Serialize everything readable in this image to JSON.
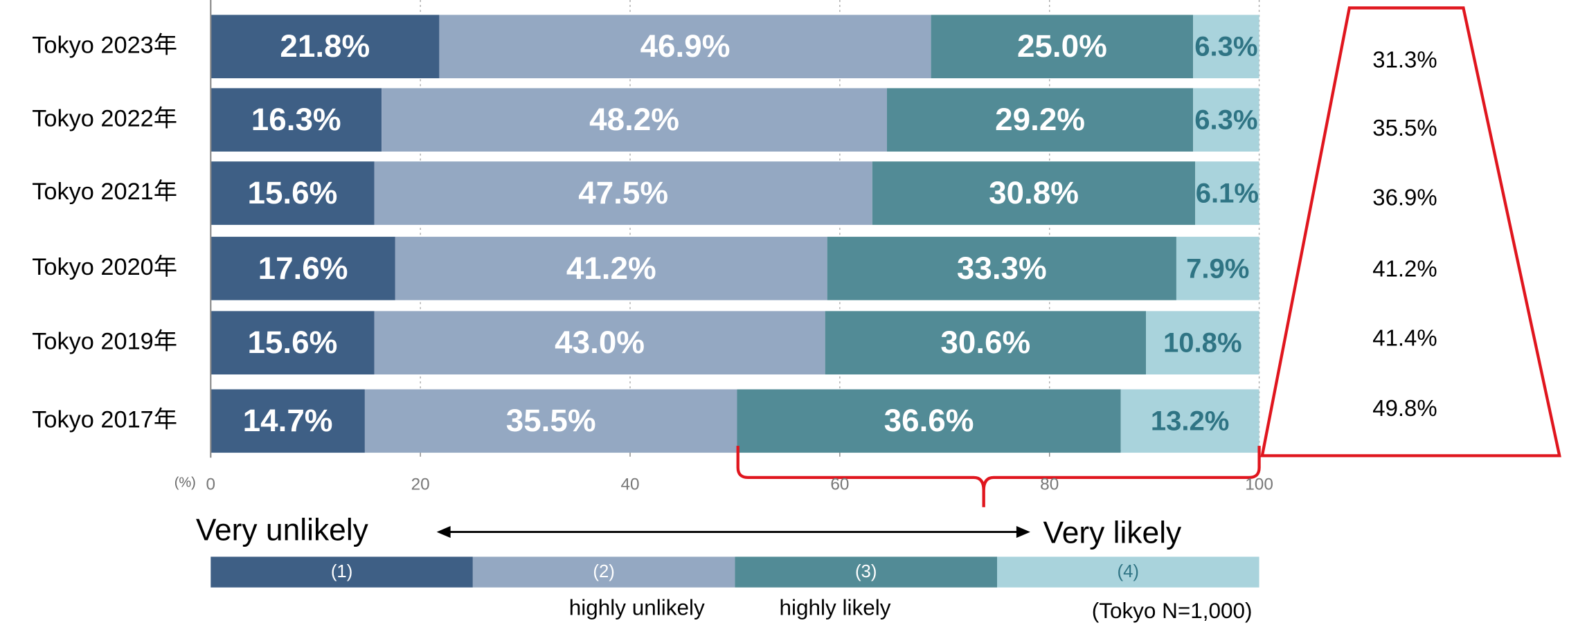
{
  "chart_data": {
    "type": "stacked-bar-horizontal",
    "categories": [
      "Tokyo 2023年",
      "Tokyo 2022年",
      "Tokyo 2021年",
      "Tokyo 2020年",
      "Tokyo 2019年",
      "Tokyo 2017年"
    ],
    "series": [
      {
        "name": "(1)",
        "color": "#3e5f85",
        "values": [
          21.8,
          16.3,
          15.6,
          17.6,
          15.6,
          14.7
        ],
        "value_labels": [
          "21.8%",
          "16.3%",
          "15.6%",
          "17.6%",
          "15.6%",
          "14.7%"
        ]
      },
      {
        "name": "(2)",
        "color": "#94a8c2",
        "values": [
          46.9,
          48.2,
          47.5,
          41.2,
          43.0,
          35.5
        ],
        "value_labels": [
          "46.9%",
          "48.2%",
          "47.5%",
          "41.2%",
          "43.0%",
          "35.5%"
        ]
      },
      {
        "name": "(3)",
        "color": "#528b96",
        "values": [
          25.0,
          29.2,
          30.8,
          33.3,
          30.6,
          36.6
        ],
        "value_labels": [
          "25.0%",
          "29.2%",
          "30.8%",
          "33.3%",
          "30.6%",
          "36.6%"
        ]
      },
      {
        "name": "(4)",
        "color": "#a9d3dc",
        "values": [
          6.3,
          6.3,
          6.1,
          7.9,
          10.8,
          13.2
        ],
        "value_labels": [
          "6.3%",
          "6.3%",
          "6.1%",
          "7.9%",
          "10.8%",
          "13.2%"
        ]
      }
    ],
    "xlim": [
      0,
      100
    ],
    "xticks": [
      0,
      20,
      40,
      60,
      80,
      100
    ],
    "x_unit_label": "(%)",
    "grid": true,
    "totals": {
      "values": [
        31.3,
        35.5,
        36.9,
        41.2,
        41.4,
        49.8
      ],
      "value_labels": [
        "31.3%",
        "35.5%",
        "36.9%",
        "41.2%",
        "41.4%",
        "49.8%"
      ]
    },
    "annotations": {
      "left": "Very unlikely",
      "right": "Very likely",
      "series_1_note": "highly unlikely",
      "series_2_note": "highly likely",
      "sample": "(Tokyo N=1,000)"
    }
  }
}
